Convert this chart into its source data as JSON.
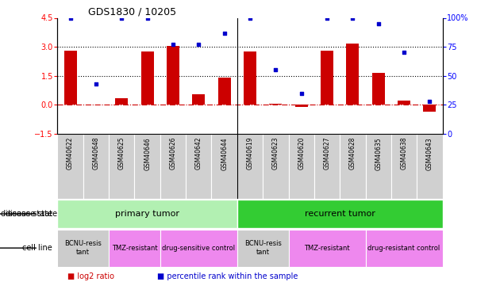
{
  "title": "GDS1830 / 10205",
  "samples": [
    "GSM40622",
    "GSM40648",
    "GSM40625",
    "GSM40646",
    "GSM40626",
    "GSM40642",
    "GSM40644",
    "GSM40619",
    "GSM40623",
    "GSM40620",
    "GSM40627",
    "GSM40628",
    "GSM40635",
    "GSM40638",
    "GSM40643"
  ],
  "log2_ratio": [
    2.8,
    0.0,
    0.35,
    2.75,
    3.05,
    0.55,
    1.4,
    2.75,
    0.04,
    -0.1,
    2.8,
    3.15,
    1.65,
    0.2,
    -0.35
  ],
  "percentile_rank": [
    100,
    43,
    100,
    100,
    77,
    77,
    87,
    100,
    55,
    35,
    100,
    100,
    95,
    70,
    28
  ],
  "bar_color": "#cc0000",
  "dot_color": "#0000cc",
  "ylim_left": [
    -1.5,
    4.5
  ],
  "ylim_right": [
    0,
    100
  ],
  "yticks_left": [
    -1.5,
    0.0,
    1.5,
    3.0,
    4.5
  ],
  "yticks_right": [
    0,
    25,
    50,
    75,
    100
  ],
  "hlines": [
    0.0,
    1.5,
    3.0
  ],
  "disease_state_color_primary": "#b2f0b2",
  "disease_state_color_recurrent": "#33cc33",
  "cell_line_bcnu_color": "#cccccc",
  "cell_line_tmz_color": "#ee88ee",
  "cell_line_drug_color": "#ee88ee",
  "sample_label_bg": "#d0d0d0",
  "legend_items": [
    {
      "label": "log2 ratio",
      "color": "#cc0000"
    },
    {
      "label": "percentile rank within the sample",
      "color": "#0000cc"
    }
  ]
}
